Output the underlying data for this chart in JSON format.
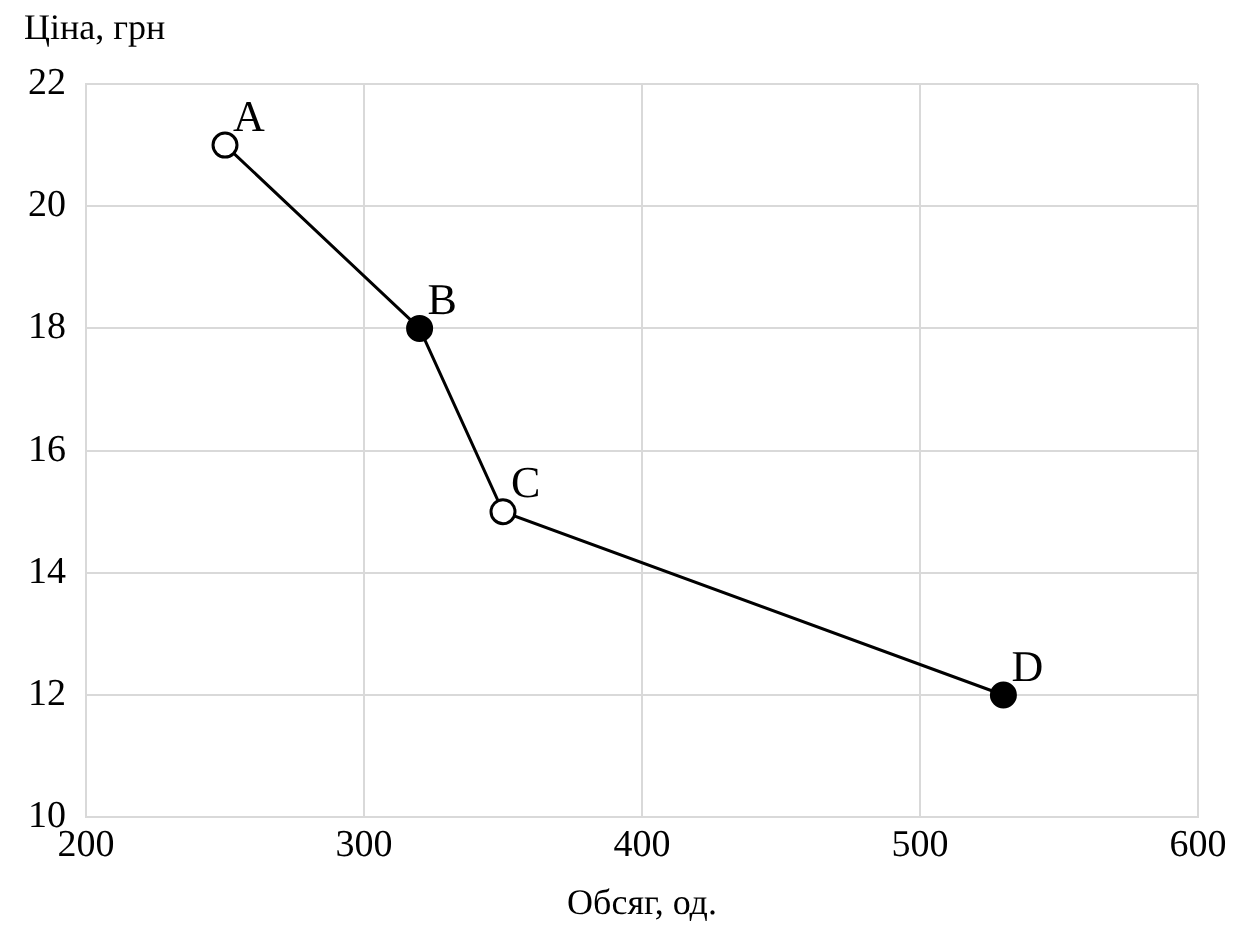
{
  "chart_data": {
    "type": "line",
    "xlabel": "Обсяг, од.",
    "ylabel": "Ціна, грн",
    "x": [
      250,
      320,
      350,
      530
    ],
    "series": [
      {
        "color": "#000000",
        "colors": [
          "#ffffff",
          "#000000",
          "#ffffff",
          "#000000"
        ],
        "values": [
          21,
          18,
          15,
          12
        ]
      }
    ],
    "xlim": [
      200,
      600
    ],
    "xticks": [
      200,
      300,
      400,
      500,
      600
    ],
    "ylim": [
      10,
      22
    ],
    "yticks": [
      10,
      12,
      14,
      16,
      18,
      20,
      22
    ],
    "grid": true,
    "legend": false,
    "marker": "circle",
    "line_style": "solid",
    "annotations": [
      {
        "text": "A",
        "x": 250,
        "y": 21
      },
      {
        "text": "B",
        "x": 320,
        "y": 18
      },
      {
        "text": "C",
        "x": 350,
        "y": 15
      },
      {
        "text": "D",
        "x": 530,
        "y": 12
      }
    ]
  }
}
